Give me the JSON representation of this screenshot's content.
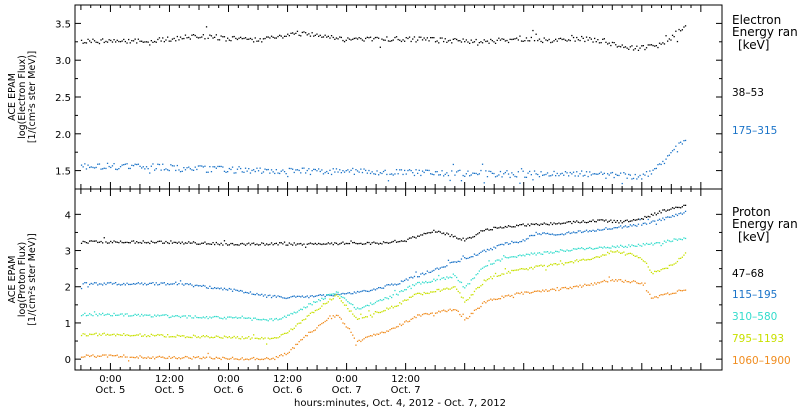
{
  "chart_data": [
    {
      "type": "scatter",
      "panel": "electron",
      "ylabel_lines": [
        "ACE EPAM",
        "log(Electron Flux)",
        "[1/(cm²s ster MeV)]"
      ],
      "legend_title": [
        "Electron",
        "Energy ran"
      ],
      "legend_unit": "[keV]",
      "ylim": [
        1.25,
        3.75
      ],
      "yticks": [
        1.5,
        2.0,
        2.5,
        3.0,
        3.5
      ],
      "ytick_labels": [
        "1.5",
        "2.0",
        "2.5",
        "3.0",
        "3.5"
      ],
      "series": [
        {
          "name": "38–53",
          "color": "#000000",
          "points": [
            [
              0,
              3.27
            ],
            [
              4,
              3.26
            ],
            [
              8,
              3.27
            ],
            [
              12,
              3.3
            ],
            [
              16,
              3.32
            ],
            [
              20,
              3.33
            ],
            [
              24,
              3.3
            ],
            [
              28,
              3.29
            ],
            [
              32,
              3.29
            ],
            [
              36,
              3.36
            ],
            [
              40,
              3.38
            ],
            [
              42,
              3.34
            ],
            [
              48,
              3.29
            ],
            [
              54,
              3.29
            ],
            [
              60,
              3.3
            ],
            [
              66,
              3.28
            ],
            [
              72,
              3.27
            ],
            [
              78,
              3.27
            ],
            [
              84,
              3.29
            ],
            [
              90,
              3.27
            ],
            [
              96,
              3.3
            ],
            [
              100,
              3.27
            ],
            [
              104,
              3.19
            ],
            [
              108,
              3.17
            ],
            [
              112,
              3.22
            ],
            [
              115,
              3.38
            ],
            [
              117,
              3.52
            ]
          ]
        },
        {
          "name": "175–315",
          "color": "#1a73c8",
          "points": [
            [
              0,
              1.57
            ],
            [
              6,
              1.56
            ],
            [
              12,
              1.55
            ],
            [
              18,
              1.53
            ],
            [
              24,
              1.52
            ],
            [
              30,
              1.51
            ],
            [
              36,
              1.5
            ],
            [
              42,
              1.5
            ],
            [
              48,
              1.5
            ],
            [
              54,
              1.49
            ],
            [
              60,
              1.48
            ],
            [
              66,
              1.48
            ],
            [
              72,
              1.47
            ],
            [
              78,
              1.47
            ],
            [
              84,
              1.46
            ],
            [
              90,
              1.46
            ],
            [
              96,
              1.46
            ],
            [
              100,
              1.45
            ],
            [
              104,
              1.44
            ],
            [
              108,
              1.42
            ],
            [
              110,
              1.5
            ],
            [
              113,
              1.68
            ],
            [
              117,
              1.95
            ]
          ]
        }
      ]
    },
    {
      "type": "scatter",
      "panel": "proton",
      "ylabel_lines": [
        "ACE EPAM",
        "log(Proton Flux)",
        "[1/(cm²s ster MeV)]"
      ],
      "legend_title": [
        "Proton",
        "Energy ran"
      ],
      "legend_unit": "[keV]",
      "ylim": [
        -0.3,
        4.7
      ],
      "yticks": [
        0,
        1,
        2,
        3,
        4
      ],
      "ytick_labels": [
        "0",
        "1",
        "2",
        "3",
        "4"
      ],
      "xlabel": "hours:minutes, Oct.  4, 2012 - Oct.  7, 2012",
      "xlim": [
        -7.2,
        124.3
      ],
      "xtick_positions": [
        0,
        12,
        24,
        36,
        48,
        60
      ],
      "xtick_labels": [
        [
          "0:00",
          "Oct. 5"
        ],
        [
          "12:00",
          "Oct. 5"
        ],
        [
          "0:00",
          "Oct. 6"
        ],
        [
          "12:00",
          "Oct. 6"
        ],
        [
          "0:00",
          "Oct. 7"
        ],
        [
          "12:00",
          "Oct. 7"
        ]
      ],
      "series": [
        {
          "name": "47–68",
          "color": "#000000",
          "points": [
            [
              0,
              3.25
            ],
            [
              6,
              3.25
            ],
            [
              12,
              3.24
            ],
            [
              18,
              3.22
            ],
            [
              24,
              3.2
            ],
            [
              30,
              3.2
            ],
            [
              36,
              3.2
            ],
            [
              42,
              3.2
            ],
            [
              48,
              3.22
            ],
            [
              54,
              3.22
            ],
            [
              60,
              3.3
            ],
            [
              64,
              3.5
            ],
            [
              66,
              3.55
            ],
            [
              70,
              3.4
            ],
            [
              72,
              3.3
            ],
            [
              76,
              3.6
            ],
            [
              82,
              3.7
            ],
            [
              88,
              3.75
            ],
            [
              94,
              3.8
            ],
            [
              100,
              3.85
            ],
            [
              104,
              3.8
            ],
            [
              108,
              3.9
            ],
            [
              112,
              4.1
            ],
            [
              115,
              4.2
            ],
            [
              117,
              4.25
            ]
          ]
        },
        {
          "name": "115–195",
          "color": "#1a73c8",
          "points": [
            [
              0,
              2.1
            ],
            [
              8,
              2.1
            ],
            [
              14,
              2.1
            ],
            [
              20,
              2.0
            ],
            [
              26,
              1.9
            ],
            [
              32,
              1.75
            ],
            [
              36,
              1.72
            ],
            [
              40,
              1.75
            ],
            [
              46,
              1.8
            ],
            [
              52,
              1.9
            ],
            [
              58,
              2.1
            ],
            [
              64,
              2.4
            ],
            [
              70,
              2.7
            ],
            [
              74,
              2.9
            ],
            [
              78,
              3.1
            ],
            [
              80,
              3.2
            ],
            [
              84,
              3.3
            ],
            [
              86,
              3.5
            ],
            [
              90,
              3.45
            ],
            [
              96,
              3.55
            ],
            [
              102,
              3.65
            ],
            [
              106,
              3.7
            ],
            [
              110,
              3.8
            ],
            [
              114,
              3.95
            ],
            [
              117,
              4.1
            ]
          ]
        },
        {
          "name": "310–580",
          "color": "#33dccc",
          "points": [
            [
              0,
              1.25
            ],
            [
              6,
              1.22
            ],
            [
              12,
              1.2
            ],
            [
              18,
              1.18
            ],
            [
              24,
              1.15
            ],
            [
              30,
              1.12
            ],
            [
              33,
              1.1
            ],
            [
              36,
              1.2
            ],
            [
              40,
              1.5
            ],
            [
              44,
              1.75
            ],
            [
              46,
              1.85
            ],
            [
              50,
              1.4
            ],
            [
              54,
              1.6
            ],
            [
              58,
              1.8
            ],
            [
              62,
              2.1
            ],
            [
              66,
              2.2
            ],
            [
              70,
              2.3
            ],
            [
              72,
              2.0
            ],
            [
              76,
              2.6
            ],
            [
              80,
              2.8
            ],
            [
              84,
              2.9
            ],
            [
              88,
              2.95
            ],
            [
              94,
              3.05
            ],
            [
              100,
              3.1
            ],
            [
              106,
              3.15
            ],
            [
              110,
              3.2
            ],
            [
              114,
              3.3
            ],
            [
              117,
              3.35
            ]
          ]
        },
        {
          "name": "795–1193",
          "color": "#c8e000",
          "points": [
            [
              0,
              0.7
            ],
            [
              6,
              0.68
            ],
            [
              12,
              0.66
            ],
            [
              18,
              0.64
            ],
            [
              24,
              0.62
            ],
            [
              30,
              0.6
            ],
            [
              33,
              0.58
            ],
            [
              36,
              0.75
            ],
            [
              40,
              1.2
            ],
            [
              44,
              1.6
            ],
            [
              46,
              1.8
            ],
            [
              50,
              1.1
            ],
            [
              54,
              1.3
            ],
            [
              58,
              1.5
            ],
            [
              62,
              1.8
            ],
            [
              66,
              1.9
            ],
            [
              70,
              2.0
            ],
            [
              72,
              1.6
            ],
            [
              76,
              2.2
            ],
            [
              80,
              2.4
            ],
            [
              84,
              2.5
            ],
            [
              88,
              2.6
            ],
            [
              94,
              2.7
            ],
            [
              98,
              2.8
            ],
            [
              102,
              3.0
            ],
            [
              106,
              2.9
            ],
            [
              108,
              2.8
            ],
            [
              110,
              2.4
            ],
            [
              114,
              2.6
            ],
            [
              117,
              2.95
            ]
          ]
        },
        {
          "name": "1060–1900",
          "color": "#f08c1e",
          "points": [
            [
              0,
              0.1
            ],
            [
              6,
              0.08
            ],
            [
              12,
              0.06
            ],
            [
              18,
              0.05
            ],
            [
              24,
              0.04
            ],
            [
              30,
              0.03
            ],
            [
              33,
              0.02
            ],
            [
              36,
              0.2
            ],
            [
              40,
              0.7
            ],
            [
              44,
              1.1
            ],
            [
              46,
              1.25
            ],
            [
              50,
              0.5
            ],
            [
              54,
              0.7
            ],
            [
              58,
              0.9
            ],
            [
              62,
              1.2
            ],
            [
              66,
              1.3
            ],
            [
              70,
              1.4
            ],
            [
              72,
              1.1
            ],
            [
              76,
              1.6
            ],
            [
              80,
              1.75
            ],
            [
              84,
              1.85
            ],
            [
              88,
              1.9
            ],
            [
              94,
              2.0
            ],
            [
              98,
              2.1
            ],
            [
              102,
              2.2
            ],
            [
              106,
              2.15
            ],
            [
              108,
              2.1
            ],
            [
              110,
              1.7
            ],
            [
              114,
              1.85
            ],
            [
              117,
              1.95
            ]
          ]
        }
      ]
    }
  ]
}
